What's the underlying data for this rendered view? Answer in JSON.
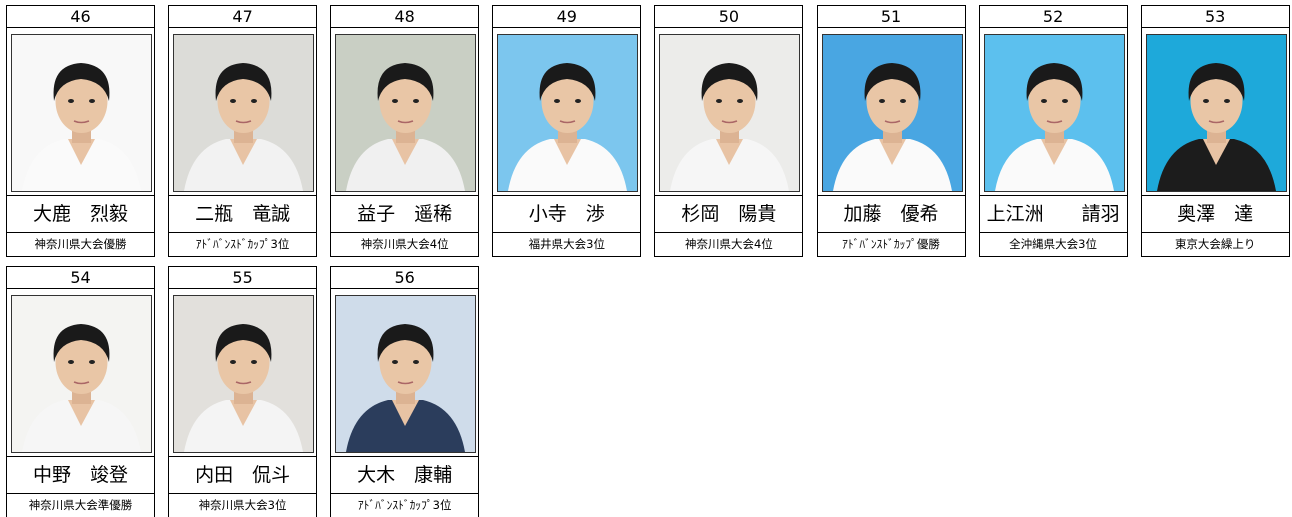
{
  "cards": [
    {
      "number": 46,
      "name": "大鹿　烈毅",
      "award": "神奈川県大会優勝"
    },
    {
      "number": 47,
      "name": "二瓶　竜誠",
      "award": "ｱﾄﾞﾊﾞﾝｽﾄﾞｶｯﾌﾟ3位"
    },
    {
      "number": 48,
      "name": "益子　遥稀",
      "award": "神奈川県大会4位"
    },
    {
      "number": 49,
      "name": "小寺　渉",
      "award": "福井県大会3位"
    },
    {
      "number": 50,
      "name": "杉岡　陽貴",
      "award": "神奈川県大会4位"
    },
    {
      "number": 51,
      "name": "加藤　優希",
      "award": "ｱﾄﾞﾊﾞﾝｽﾄﾞｶｯﾌﾟ優勝"
    },
    {
      "number": 52,
      "name": "上江洲　　請羽",
      "award": "全沖縄県大会3位"
    },
    {
      "number": 53,
      "name": "奥澤　達",
      "award": "東京大会繰上り"
    },
    {
      "number": 54,
      "name": "中野　竣登",
      "award": "神奈川県大会準優勝"
    },
    {
      "number": 55,
      "name": "内田　侃斗",
      "award": "神奈川県大会3位"
    },
    {
      "number": 56,
      "name": "大木　康輔",
      "award": "ｱﾄﾞﾊﾞﾝｽﾄﾞｶｯﾌﾟ3位"
    }
  ]
}
